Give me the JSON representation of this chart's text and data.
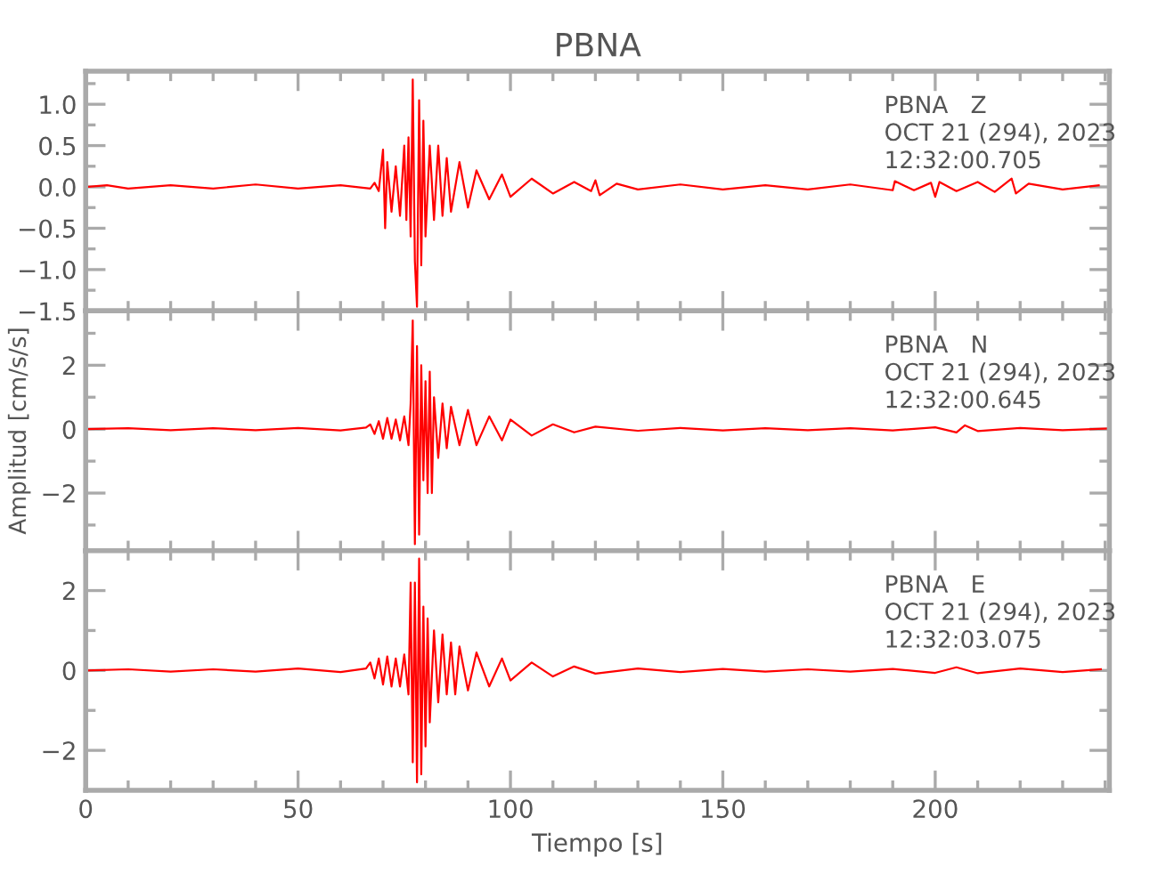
{
  "chart_data": [
    {
      "type": "line",
      "title": "PBNA",
      "tick_labels": "y",
      "annotations": [
        "PBNA   Z",
        "OCT 21 (294), 2023",
        "12:32:00.705"
      ],
      "xlim": [
        0,
        241
      ],
      "ylim": [
        -1.5,
        1.4
      ],
      "xticks": [
        0,
        {
          "value": 10,
          "label": null
        },
        {
          "value": 20,
          "label": null
        },
        {
          "value": 30,
          "label": null
        },
        {
          "value": 40,
          "label": null
        },
        50,
        {
          "value": 60,
          "label": null
        },
        {
          "value": 70,
          "label": null
        },
        {
          "value": 80,
          "label": null
        },
        {
          "value": 90,
          "label": null
        },
        100,
        {
          "value": 110,
          "label": null
        },
        {
          "value": 120,
          "label": null
        },
        {
          "value": 130,
          "label": null
        },
        {
          "value": 140,
          "label": null
        },
        150,
        {
          "value": 160,
          "label": null
        },
        {
          "value": 170,
          "label": null
        },
        {
          "value": 180,
          "label": null
        },
        {
          "value": 190,
          "label": null
        },
        200,
        {
          "value": 210,
          "label": null
        },
        {
          "value": 220,
          "label": null
        },
        {
          "value": 230,
          "label": null
        },
        {
          "value": 240,
          "label": null
        }
      ],
      "yticks": [
        {
          "value": -1.5,
          "label": "−1.5"
        },
        {
          "value": -1.25,
          "label": null
        },
        {
          "value": -1.0,
          "label": "−1.0"
        },
        {
          "value": -0.75,
          "label": null
        },
        {
          "value": -0.5,
          "label": "−0.5"
        },
        {
          "value": -0.25,
          "label": null
        },
        {
          "value": 0.0,
          "label": "0.0"
        },
        {
          "value": 0.25,
          "label": null
        },
        {
          "value": 0.5,
          "label": "0.5"
        },
        {
          "value": 0.75,
          "label": null
        },
        {
          "value": 1.0,
          "label": "1.0"
        },
        {
          "value": 1.25,
          "label": null
        }
      ],
      "series": [
        {
          "color": "#ff0000",
          "x": [
            0,
            5,
            10,
            20,
            30,
            40,
            50,
            60,
            67,
            68,
            69,
            70,
            70.5,
            71,
            72,
            73,
            74,
            75,
            75.5,
            76,
            76.5,
            77,
            77.5,
            78,
            78.5,
            79,
            79.5,
            80,
            81,
            82,
            83,
            84,
            85,
            86,
            88,
            90,
            92,
            95,
            98,
            100,
            105,
            110,
            115,
            119,
            120,
            121,
            125,
            130,
            140,
            150,
            160,
            170,
            180,
            190,
            190.5,
            195,
            199,
            200,
            201,
            205,
            210,
            214,
            218,
            219,
            222,
            230,
            238.5
          ],
          "values": [
            0.0,
            0.02,
            -0.02,
            0.02,
            -0.02,
            0.03,
            -0.02,
            0.02,
            -0.02,
            0.05,
            -0.05,
            0.45,
            -0.5,
            0.3,
            -0.3,
            0.25,
            -0.35,
            0.5,
            -0.4,
            0.6,
            -0.6,
            1.3,
            -0.9,
            -1.45,
            1.05,
            -0.95,
            0.8,
            -0.6,
            0.5,
            -0.4,
            0.5,
            -0.35,
            0.35,
            -0.3,
            0.3,
            -0.25,
            0.2,
            -0.15,
            0.15,
            -0.12,
            0.1,
            -0.08,
            0.06,
            -0.05,
            0.08,
            -0.1,
            0.04,
            -0.03,
            0.03,
            -0.03,
            0.02,
            -0.03,
            0.03,
            -0.04,
            0.07,
            -0.04,
            0.05,
            -0.12,
            0.06,
            -0.05,
            0.06,
            -0.06,
            0.1,
            -0.08,
            0.04,
            -0.03,
            0.02
          ]
        }
      ]
    },
    {
      "type": "line",
      "ylabel": "Amplitud [cm/s/s]",
      "tick_labels": "y",
      "annotations": [
        "PBNA   N",
        "OCT 21 (294), 2023",
        "12:32:00.645"
      ],
      "xlim": [
        0,
        241
      ],
      "ylim": [
        -3.8,
        3.7
      ],
      "xticks": [
        0,
        {
          "value": 10,
          "label": null
        },
        {
          "value": 20,
          "label": null
        },
        {
          "value": 30,
          "label": null
        },
        {
          "value": 40,
          "label": null
        },
        50,
        {
          "value": 60,
          "label": null
        },
        {
          "value": 70,
          "label": null
        },
        {
          "value": 80,
          "label": null
        },
        {
          "value": 90,
          "label": null
        },
        100,
        {
          "value": 110,
          "label": null
        },
        {
          "value": 120,
          "label": null
        },
        {
          "value": 130,
          "label": null
        },
        {
          "value": 140,
          "label": null
        },
        150,
        {
          "value": 160,
          "label": null
        },
        {
          "value": 170,
          "label": null
        },
        {
          "value": 180,
          "label": null
        },
        {
          "value": 190,
          "label": null
        },
        200,
        {
          "value": 210,
          "label": null
        },
        {
          "value": 220,
          "label": null
        },
        {
          "value": 230,
          "label": null
        },
        {
          "value": 240,
          "label": null
        }
      ],
      "yticks": [
        {
          "value": -3,
          "label": null
        },
        {
          "value": -2,
          "label": "−2"
        },
        {
          "value": -1,
          "label": null
        },
        {
          "value": 0,
          "label": "0"
        },
        {
          "value": 1,
          "label": null
        },
        {
          "value": 2,
          "label": "2"
        },
        {
          "value": 3,
          "label": null
        }
      ],
      "series": [
        {
          "color": "#ff0000",
          "x": [
            0,
            10,
            20,
            30,
            40,
            50,
            60,
            66,
            67,
            68,
            69,
            70,
            71,
            72,
            73,
            74,
            75,
            76,
            76.5,
            77,
            77.5,
            78,
            78.5,
            79,
            79.5,
            80,
            80.5,
            81,
            81.5,
            82,
            83,
            84,
            85,
            86,
            88,
            90,
            92,
            95,
            98,
            100,
            105,
            110,
            115,
            120,
            130,
            140,
            150,
            160,
            170,
            180,
            190,
            200,
            205,
            207,
            210,
            220,
            230,
            241
          ],
          "values": [
            0.0,
            0.03,
            -0.03,
            0.03,
            -0.03,
            0.04,
            -0.04,
            0.05,
            0.15,
            -0.15,
            0.25,
            -0.3,
            0.35,
            -0.3,
            0.3,
            -0.35,
            0.4,
            -0.5,
            0.8,
            3.4,
            -3.6,
            2.6,
            -3.3,
            2.0,
            -1.6,
            1.5,
            -2.0,
            1.8,
            -2.0,
            1.0,
            -0.9,
            0.8,
            -0.6,
            0.7,
            -0.5,
            0.6,
            -0.5,
            0.4,
            -0.35,
            0.3,
            -0.2,
            0.15,
            -0.1,
            0.08,
            -0.05,
            0.04,
            -0.04,
            0.03,
            -0.03,
            0.03,
            -0.04,
            0.06,
            -0.1,
            0.12,
            -0.06,
            0.04,
            -0.03,
            0.02
          ]
        }
      ]
    },
    {
      "type": "line",
      "xlabel": "Tiempo [s]",
      "annotations": [
        "PBNA   E",
        "OCT 21 (294), 2023",
        "12:32:03.075"
      ],
      "xlim": [
        0,
        241
      ],
      "ylim": [
        -3,
        3
      ],
      "xticks": [
        0,
        {
          "value": 10,
          "label": null
        },
        {
          "value": 20,
          "label": null
        },
        {
          "value": 30,
          "label": null
        },
        {
          "value": 40,
          "label": null
        },
        50,
        {
          "value": 60,
          "label": null
        },
        {
          "value": 70,
          "label": null
        },
        {
          "value": 80,
          "label": null
        },
        {
          "value": 90,
          "label": null
        },
        100,
        {
          "value": 110,
          "label": null
        },
        {
          "value": 120,
          "label": null
        },
        {
          "value": 130,
          "label": null
        },
        {
          "value": 140,
          "label": null
        },
        150,
        {
          "value": 160,
          "label": null
        },
        {
          "value": 170,
          "label": null
        },
        {
          "value": 180,
          "label": null
        },
        {
          "value": 190,
          "label": null
        },
        200,
        {
          "value": 210,
          "label": null
        },
        {
          "value": 220,
          "label": null
        },
        {
          "value": 230,
          "label": null
        },
        {
          "value": 240,
          "label": null
        }
      ],
      "yticks": [
        {
          "value": -3,
          "label": null
        },
        {
          "value": -2,
          "label": "−2"
        },
        {
          "value": -1,
          "label": null
        },
        {
          "value": 0,
          "label": "0"
        },
        {
          "value": 1,
          "label": null
        },
        {
          "value": 2,
          "label": "2"
        },
        {
          "value": 3,
          "label": null
        }
      ],
      "series": [
        {
          "color": "#ff0000",
          "x": [
            0,
            10,
            20,
            30,
            40,
            50,
            60,
            66,
            67,
            68,
            69,
            70,
            71,
            72,
            73,
            74,
            75,
            76,
            76.5,
            77,
            77.5,
            78,
            78.5,
            79,
            79.5,
            80,
            80.5,
            81,
            82,
            83,
            84,
            85,
            86,
            87,
            88,
            90,
            92,
            95,
            98,
            100,
            105,
            110,
            115,
            120,
            130,
            140,
            150,
            160,
            170,
            180,
            190,
            200,
            205,
            210,
            220,
            230,
            239
          ],
          "values": [
            0.0,
            0.03,
            -0.03,
            0.03,
            -0.03,
            0.05,
            -0.04,
            0.05,
            0.2,
            -0.2,
            0.3,
            -0.35,
            0.35,
            -0.4,
            0.3,
            -0.4,
            0.4,
            -0.6,
            2.2,
            -2.3,
            2.2,
            -2.8,
            2.8,
            -2.6,
            1.6,
            -1.9,
            1.3,
            -1.3,
            1.0,
            -0.8,
            0.9,
            -0.6,
            0.7,
            -0.6,
            0.6,
            -0.5,
            0.45,
            -0.4,
            0.3,
            -0.25,
            0.2,
            -0.15,
            0.1,
            -0.08,
            0.05,
            -0.04,
            0.04,
            -0.03,
            0.03,
            -0.03,
            0.04,
            -0.06,
            0.08,
            -0.07,
            0.05,
            -0.04,
            0.03
          ]
        }
      ]
    }
  ]
}
